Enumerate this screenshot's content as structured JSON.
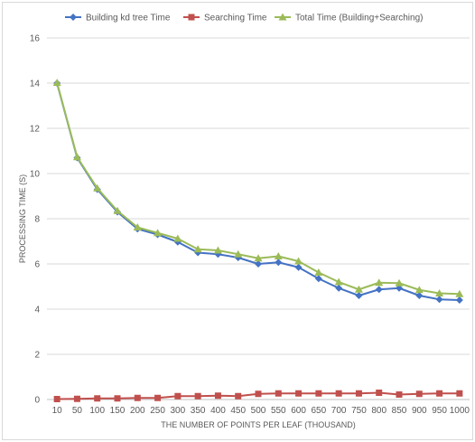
{
  "chart_data": {
    "type": "line",
    "title": "",
    "xlabel": "THE NUMBER OF POINTS PER LEAF (THOUSAND)",
    "ylabel": "PROCESSING TIME (S)",
    "ylim": [
      0,
      16
    ],
    "yticks": [
      "0",
      "2",
      "4",
      "6",
      "8",
      "10",
      "12",
      "14",
      "16"
    ],
    "grid": "horizontal",
    "legend_position": "top",
    "categories": [
      "10",
      "50",
      "100",
      "150",
      "200",
      "250",
      "300",
      "350",
      "400",
      "450",
      "500",
      "550",
      "600",
      "650",
      "700",
      "750",
      "800",
      "850",
      "900",
      "950",
      "1000"
    ],
    "series": [
      {
        "name": "Building kd tree Time",
        "color": "#4472c4",
        "marker": "diamond",
        "values": [
          14.0,
          10.7,
          9.3,
          8.3,
          7.55,
          7.3,
          6.97,
          6.5,
          6.43,
          6.28,
          6.0,
          6.07,
          5.85,
          5.35,
          4.93,
          4.6,
          4.87,
          4.93,
          4.6,
          4.43,
          4.4
        ]
      },
      {
        "name": "Searching Time",
        "color": "#c0504d",
        "marker": "square",
        "values": [
          0.02,
          0.03,
          0.05,
          0.05,
          0.07,
          0.07,
          0.15,
          0.15,
          0.17,
          0.15,
          0.25,
          0.27,
          0.27,
          0.27,
          0.27,
          0.27,
          0.3,
          0.22,
          0.25,
          0.27,
          0.27
        ]
      },
      {
        "name": "Total Time (Building+Searching)",
        "color": "#9bbb59",
        "marker": "triangle",
        "values": [
          14.02,
          10.73,
          9.35,
          8.35,
          7.62,
          7.37,
          7.12,
          6.65,
          6.6,
          6.43,
          6.25,
          6.34,
          6.12,
          5.62,
          5.2,
          4.87,
          5.17,
          5.15,
          4.85,
          4.7,
          4.67
        ]
      }
    ]
  }
}
